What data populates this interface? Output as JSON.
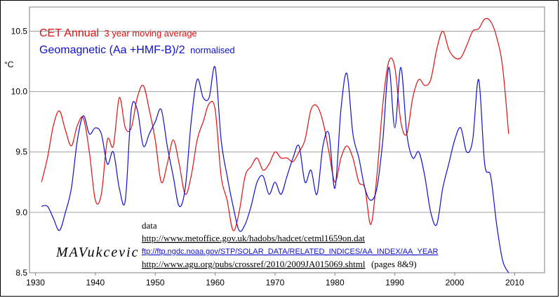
{
  "chart_data": {
    "type": "line",
    "ylabel": "°C",
    "x_ticks": [
      "1930",
      "1940",
      "1950",
      "1960",
      "1970",
      "1980",
      "1990",
      "2000",
      "2010"
    ],
    "y_ticks": [
      "8.5",
      "9.0",
      "9.5",
      "10.0",
      "10.5"
    ],
    "xlim": [
      1929,
      2015
    ],
    "ylim": [
      8.5,
      10.7
    ],
    "grid": "horizontal",
    "legend": {
      "series1_name": "CET Annual",
      "series1_suffix": "3 year moving average",
      "series2_name": "Geomagnetic (Aa +HMF-B)/2",
      "series2_suffix": "normalised"
    },
    "series": [
      {
        "name": "CET Annual",
        "color": "#e01010",
        "x": [
          1931,
          1932,
          1933,
          1934,
          1935,
          1936,
          1937,
          1938,
          1939,
          1940,
          1941,
          1942,
          1943,
          1944,
          1945,
          1946,
          1947,
          1948,
          1949,
          1950,
          1951,
          1952,
          1953,
          1954,
          1955,
          1956,
          1957,
          1958,
          1959,
          1960,
          1961,
          1962,
          1963,
          1964,
          1965,
          1966,
          1967,
          1968,
          1969,
          1970,
          1971,
          1972,
          1973,
          1974,
          1975,
          1976,
          1977,
          1978,
          1979,
          1980,
          1981,
          1982,
          1983,
          1984,
          1985,
          1986,
          1987,
          1988,
          1989,
          1990,
          1991,
          1992,
          1993,
          1994,
          1995,
          1996,
          1997,
          1998,
          1999,
          2000,
          2001,
          2002,
          2003,
          2004,
          2005,
          2006,
          2007,
          2008,
          2009
        ],
        "y": [
          9.25,
          9.45,
          9.72,
          9.84,
          9.68,
          9.55,
          9.72,
          9.78,
          9.5,
          9.1,
          9.15,
          9.6,
          9.55,
          9.95,
          9.7,
          9.7,
          9.95,
          10.05,
          9.85,
          9.6,
          9.25,
          9.4,
          9.6,
          9.4,
          9.15,
          9.3,
          9.6,
          9.75,
          9.9,
          9.85,
          9.3,
          9.1,
          8.85,
          9.0,
          9.3,
          9.38,
          9.45,
          9.35,
          9.4,
          9.5,
          9.45,
          9.45,
          9.42,
          9.5,
          9.6,
          9.85,
          9.88,
          9.75,
          9.5,
          9.25,
          9.45,
          9.55,
          9.45,
          9.25,
          9.2,
          8.9,
          9.3,
          9.9,
          10.25,
          10.2,
          9.75,
          9.65,
          9.95,
          10.1,
          10.05,
          10.1,
          10.35,
          10.5,
          10.35,
          10.28,
          10.28,
          10.38,
          10.5,
          10.52,
          10.6,
          10.58,
          10.45,
          10.2,
          9.65
        ]
      },
      {
        "name": "Geomagnetic (Aa +HMF-B)/2",
        "color": "#1010d0",
        "x": [
          1931,
          1932,
          1933,
          1934,
          1935,
          1936,
          1937,
          1938,
          1939,
          1940,
          1941,
          1942,
          1943,
          1944,
          1945,
          1946,
          1947,
          1948,
          1949,
          1950,
          1951,
          1952,
          1953,
          1954,
          1955,
          1956,
          1957,
          1958,
          1959,
          1960,
          1961,
          1962,
          1963,
          1964,
          1965,
          1966,
          1967,
          1968,
          1969,
          1970,
          1971,
          1972,
          1973,
          1974,
          1975,
          1976,
          1977,
          1978,
          1979,
          1980,
          1981,
          1982,
          1983,
          1984,
          1985,
          1986,
          1987,
          1988,
          1989,
          1990,
          1991,
          1992,
          1993,
          1994,
          1995,
          1996,
          1997,
          1998,
          1999,
          2000,
          2001,
          2002,
          2003,
          2004,
          2005,
          2006,
          2007,
          2008,
          2009
        ],
        "y": [
          9.05,
          9.05,
          8.95,
          8.85,
          9.0,
          9.2,
          9.6,
          9.8,
          9.65,
          9.7,
          9.65,
          9.4,
          9.5,
          9.2,
          9.1,
          9.85,
          9.85,
          9.55,
          9.65,
          9.75,
          9.85,
          9.55,
          9.3,
          9.05,
          9.2,
          9.75,
          10.1,
          9.95,
          9.95,
          10.2,
          9.6,
          9.3,
          9.05,
          8.85,
          8.9,
          9.05,
          9.25,
          9.3,
          9.15,
          9.25,
          9.15,
          9.3,
          9.45,
          9.55,
          9.25,
          9.35,
          9.15,
          9.55,
          9.65,
          9.2,
          9.85,
          10.15,
          9.65,
          9.45,
          9.2,
          9.1,
          9.2,
          9.6,
          10.2,
          9.7,
          10.2,
          9.65,
          9.45,
          9.5,
          9.3,
          9.0,
          8.9,
          9.2,
          9.4,
          9.6,
          9.7,
          9.5,
          9.6,
          10.1,
          9.4,
          9.3,
          8.9,
          8.6,
          8.5
        ]
      }
    ]
  },
  "annotations": {
    "data_heading": "data",
    "link1": "http://www.metoffice.gov.uk/hadobs/hadcet/cetml1659on.dat",
    "link2": "ftp://ftp.ngdc.noaa.gov/STP/SOLAR_DATA/RELATED_INDICES/AA_INDEX/AA_YEAR",
    "link3": "http://www.agu.org/pubs/crossref/2010/2009JA015069.shtml",
    "link3_suffix": "(pages 8&9)",
    "signature": "MAVukcevic"
  }
}
